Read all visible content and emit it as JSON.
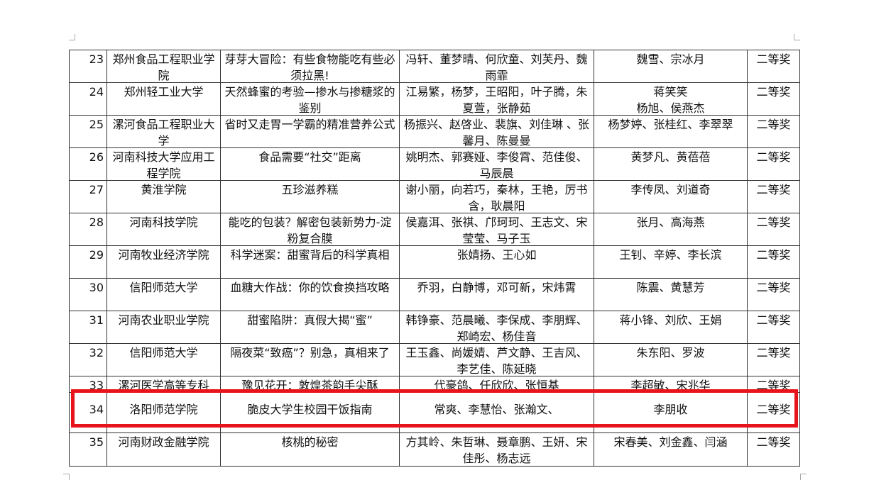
{
  "table": {
    "rows": [
      [
        "23",
        "郑州食品工程职业学院",
        "芽芽大冒险：有些食物能吃有些必须拉黑!",
        "冯轩、董梦晴、何欣童、刘芙丹、魏雨霏",
        "魏雪、宗冰月",
        "二等奖"
      ],
      [
        "24",
        "郑州轻工业大学",
        "天然蜂蜜的考验—掺水与掺糖浆的鉴别",
        "江易繁，杨梦，王昭阳，叶子腾，朱夏萱，张静茹",
        "蒋笑笑\n杨旭、侯燕杰",
        "二等奖"
      ],
      [
        "25",
        "漯河食品工程职业大学",
        "省时又走胃一学霸的精准营养公式",
        "杨振兴、赵啓业、裴旗、刘佳琳 、张馨月、陈曼曼",
        "杨梦婷、张桂红、李翠翠",
        "二等奖"
      ],
      [
        "26",
        "河南科技大学应用工程学院",
        "食品需要“社交”距离",
        "姚明杰、郭赛娅、李俊霄、范佳俊、马辰晨",
        "黄梦凡、黄蓓蓓",
        "二等奖"
      ],
      [
        "27",
        "黄淮学院",
        "五珍滋养糕",
        "谢小丽，向若巧，秦林，王艳，厉书含，耿晨阳",
        "李传凤、刘道奇",
        "二等奖"
      ],
      [
        "28",
        "河南科技学院",
        "能吃的包装？解密包装新势力-淀粉复合膜",
        "侯嘉洱、张祺、邝珂珂、王志文、宋莹莹、马子玉",
        "张月、高海燕",
        "二等奖"
      ],
      [
        "29",
        "河南牧业经济学院",
        "科学迷案：甜蜜背后的科学真相",
        "张婧扬、王心如",
        "王钊、辛婷、李长滨",
        "二等奖"
      ],
      [
        "30",
        "信阳师范大学",
        "血糖大作战：你的饮食换挡攻略",
        "乔羽，白静博，邓可新，宋炜霄",
        "陈震、黄慧芳",
        "二等奖"
      ],
      [
        "31",
        "河南农业职业学院",
        "甜蜜陷阱：真假大揭“蜜”",
        "韩铮豪、范晨曦、李保成、李朋辉、郑崎宏、杨佳音",
        "蒋小锋、刘欣、王娟",
        "二等奖"
      ],
      [
        "32",
        "信阳师范大学",
        "隔夜菜“致癌”？别急，真相来了",
        "王玉鑫、尚媛婧、芦文静、王吉风、李艺佳、陈延晓",
        "朱东阳、罗波",
        "二等奖"
      ],
      [
        "33",
        "漯河医学高等专科",
        "豫见花开：敦煌茶韵手尖酥",
        "代豪鸽、任欣欣、张恒基",
        "李超敏、宋兆华",
        "二等奖"
      ],
      [
        "34",
        "洛阳师范学院",
        "脆皮大学生校园干饭指南",
        "常爽、李慧怡、张瀚文、",
        "李朋收",
        "二等奖"
      ],
      [
        "35",
        "河南财政金融学院",
        "核桃的秘密",
        "方其岭、朱哲琳、聂章鹏、王妍、宋佳彤、杨志远",
        "宋春美、刘金鑫、闫涵",
        "二等奖"
      ]
    ]
  }
}
